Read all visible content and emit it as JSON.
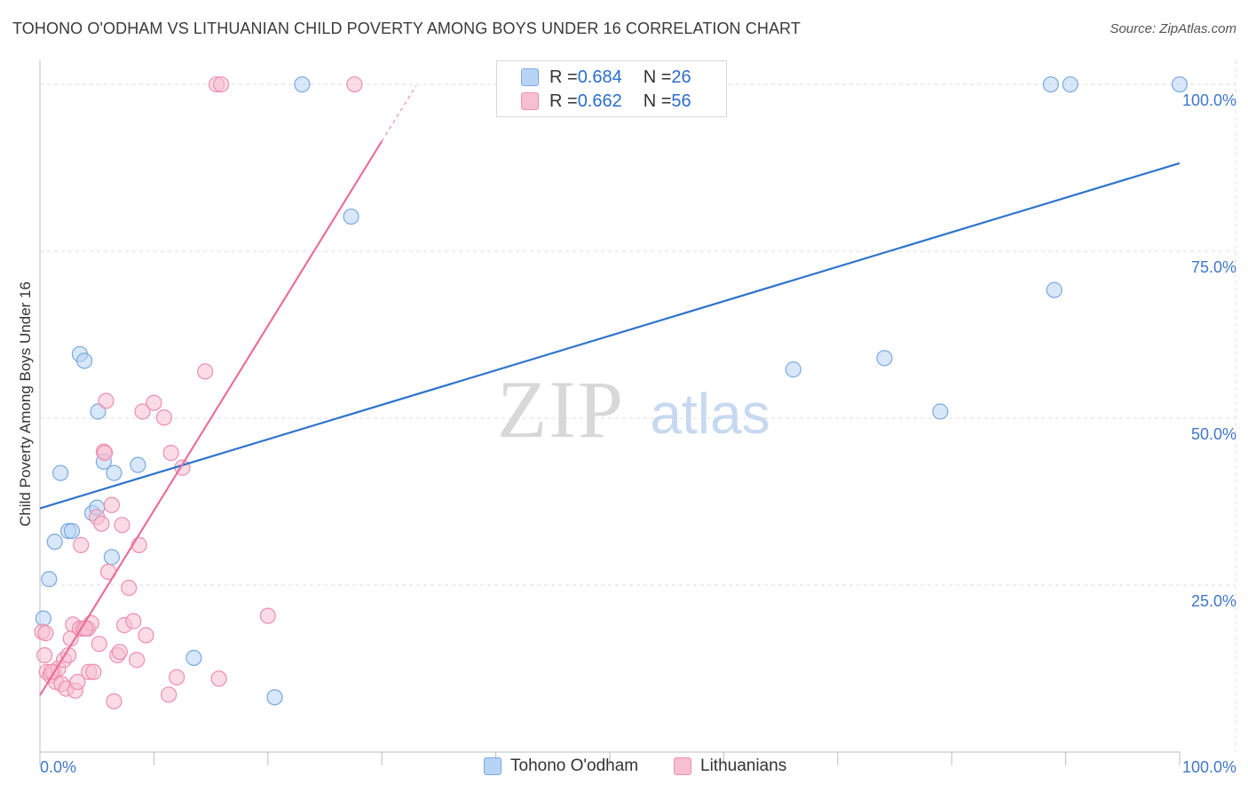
{
  "title": "TOHONO O'ODHAM VS LITHUANIAN CHILD POVERTY AMONG BOYS UNDER 16 CORRELATION CHART",
  "source": "Source: ZipAtlas.com",
  "watermark": {
    "zip": "ZIP",
    "atlas": "atlas"
  },
  "legend": {
    "rows": [
      {
        "r_label": "R = ",
        "r_value": "0.684",
        "n_label": "N = ",
        "n_value": "26"
      },
      {
        "r_label": "R = ",
        "r_value": "0.662",
        "n_label": "N = ",
        "n_value": "56"
      }
    ]
  },
  "colors": {
    "blue_fill": "#b8d4f5",
    "blue_stroke": "#7aa9e0",
    "blue_line": "#2f74cc",
    "pink_fill": "#f7bfd1",
    "pink_stroke": "#ec8fae",
    "pink_line": "#e8709a",
    "axis_text": "#3f78c8",
    "grid": "#dedede"
  },
  "chart_data": {
    "type": "scatter",
    "title": "TOHONO O'ODHAM VS LITHUANIAN CHILD POVERTY AMONG BOYS UNDER 16 CORRELATION CHART",
    "xlabel": "",
    "ylabel": "Child Poverty Among Boys Under 16",
    "xlim": [
      0,
      100
    ],
    "ylim": [
      0,
      102
    ],
    "x_tick_labels": [
      "0.0%",
      "100.0%"
    ],
    "y_tick_labels": [
      {
        "value": 25,
        "label": "25.0%"
      },
      {
        "value": 50,
        "label": "50.0%"
      },
      {
        "value": 75,
        "label": "75.0%"
      },
      {
        "value": 100,
        "label": "100.0%"
      }
    ],
    "grid": true,
    "legend_position": "top-center",
    "series": [
      {
        "name": "Tohono O'odham",
        "color": "#b8d4f5",
        "points": [
          [
            0.3,
            20.0
          ],
          [
            0.8,
            25.9
          ],
          [
            1.3,
            31.5
          ],
          [
            1.8,
            41.8
          ],
          [
            2.5,
            33.1
          ],
          [
            2.8,
            33.1
          ],
          [
            3.5,
            59.6
          ],
          [
            3.9,
            58.6
          ],
          [
            4.6,
            35.8
          ],
          [
            5.0,
            36.6
          ],
          [
            5.1,
            51.0
          ],
          [
            5.6,
            43.5
          ],
          [
            6.5,
            41.8
          ],
          [
            6.3,
            29.2
          ],
          [
            8.6,
            43.0
          ],
          [
            13.5,
            14.1
          ],
          [
            20.6,
            8.2
          ],
          [
            23.0,
            100.0
          ],
          [
            27.3,
            80.2
          ],
          [
            66.1,
            57.3
          ],
          [
            74.1,
            59.0
          ],
          [
            79.0,
            51.0
          ],
          [
            88.7,
            100.0
          ],
          [
            89.0,
            69.2
          ],
          [
            90.4,
            100.0
          ],
          [
            100.0,
            100.0
          ]
        ],
        "trendline": {
          "x": [
            0,
            100
          ],
          "y": [
            36.5,
            88.2
          ]
        }
      },
      {
        "name": "Lithuanians",
        "color": "#f7bfd1",
        "points": [
          [
            0.2,
            18.0
          ],
          [
            0.4,
            14.5
          ],
          [
            0.6,
            12.0
          ],
          [
            0.9,
            11.5
          ],
          [
            1.2,
            12.0
          ],
          [
            1.4,
            10.5
          ],
          [
            1.6,
            12.5
          ],
          [
            1.9,
            10.2
          ],
          [
            2.1,
            13.8
          ],
          [
            2.3,
            9.5
          ],
          [
            2.5,
            14.5
          ],
          [
            2.7,
            17.0
          ],
          [
            2.9,
            19.1
          ],
          [
            3.1,
            9.2
          ],
          [
            3.3,
            10.5
          ],
          [
            3.5,
            18.5
          ],
          [
            3.8,
            18.5
          ],
          [
            3.6,
            31.0
          ],
          [
            4.2,
            18.5
          ],
          [
            4.3,
            12.0
          ],
          [
            4.5,
            19.3
          ],
          [
            4.7,
            12.0
          ],
          [
            5.0,
            35.2
          ],
          [
            5.2,
            16.2
          ],
          [
            5.4,
            34.2
          ],
          [
            5.6,
            45.0
          ],
          [
            5.7,
            44.8
          ],
          [
            5.8,
            52.6
          ],
          [
            6.0,
            27.0
          ],
          [
            6.5,
            7.6
          ],
          [
            6.3,
            37.0
          ],
          [
            6.8,
            14.5
          ],
          [
            7.0,
            15.0
          ],
          [
            7.2,
            34.0
          ],
          [
            7.4,
            19.0
          ],
          [
            7.8,
            24.6
          ],
          [
            8.2,
            19.6
          ],
          [
            8.5,
            13.8
          ],
          [
            8.7,
            31.0
          ],
          [
            9.0,
            51.0
          ],
          [
            9.3,
            17.5
          ],
          [
            10.0,
            52.3
          ],
          [
            10.9,
            50.1
          ],
          [
            11.3,
            8.6
          ],
          [
            11.5,
            44.8
          ],
          [
            12.0,
            11.2
          ],
          [
            12.5,
            42.6
          ],
          [
            14.5,
            57.0
          ],
          [
            15.7,
            11.0
          ],
          [
            15.5,
            100.0
          ],
          [
            15.9,
            100.0
          ],
          [
            20.0,
            20.4
          ],
          [
            27.6,
            100.0
          ],
          [
            1.0,
            12.0
          ],
          [
            0.5,
            17.8
          ],
          [
            4.0,
            18.5
          ]
        ],
        "trendline": {
          "x": [
            0,
            30
          ],
          "y": [
            8.5,
            91.5
          ]
        },
        "trendline_dashed_extension": {
          "x": [
            30,
            33
          ],
          "y": [
            91.5,
            99.8
          ]
        }
      }
    ]
  }
}
